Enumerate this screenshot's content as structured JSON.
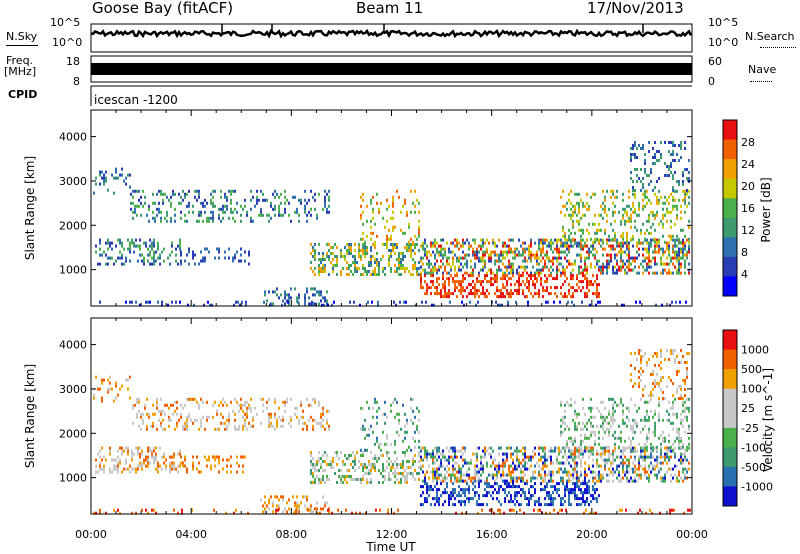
{
  "header": {
    "station": "Goose Bay (fitACF)",
    "beam": "Beam 11",
    "date": "17/Nov/2013"
  },
  "strips": {
    "nsky_label": "N.Sky",
    "nsky_ticks": [
      "10^5",
      "10^0"
    ],
    "nsearch_label": "N.Search",
    "freq_label_line1": "Freq.",
    "freq_label_line2": "[MHz]",
    "freq_ticks": [
      "18",
      "8"
    ],
    "nave_label": "Nave",
    "nave_ticks": [
      "60",
      "0"
    ],
    "cpid_label": "CPID",
    "cpid_value": "icescan -1200"
  },
  "colors": {
    "power": [
      "#0000ff",
      "#2a3cb4",
      "#2f6fb0",
      "#3d9b6e",
      "#4bb04b",
      "#c8c800",
      "#f0a000",
      "#f06000",
      "#e81010"
    ],
    "velocity": [
      "#e81010",
      "#f06000",
      "#f0a000",
      "#c8c8c8",
      "#c8c8c8",
      "#4bb04b",
      "#3d9b6e",
      "#2a6fb0",
      "#1010d0"
    ]
  },
  "chart_data": [
    {
      "type": "heatmap",
      "name": "power",
      "xlabel": "",
      "ylabel": "Slant Range [km]",
      "x_ticks": [
        "00:00",
        "04:00",
        "08:00",
        "12:00",
        "16:00",
        "20:00",
        "00:00"
      ],
      "y_ticks": [
        1000,
        2000,
        3000,
        4000
      ],
      "ylim": [
        180,
        4600
      ],
      "colorbar_label": "Power [dB]",
      "colorbar_ticks": [
        "28",
        "24",
        "20",
        "16",
        "12",
        "8",
        "4"
      ]
    },
    {
      "type": "heatmap",
      "name": "velocity",
      "xlabel": "Time UT",
      "ylabel": "Slant Range [km]",
      "x_ticks": [
        "00:00",
        "04:00",
        "08:00",
        "12:00",
        "16:00",
        "20:00",
        "00:00"
      ],
      "y_ticks": [
        1000,
        2000,
        3000,
        4000
      ],
      "ylim": [
        180,
        4600
      ],
      "colorbar_label": "Velocity [m s^-1]",
      "colorbar_ticks": [
        "1000",
        "500",
        "100",
        "25",
        "-25",
        "-100",
        "-500",
        "-1000"
      ]
    }
  ]
}
